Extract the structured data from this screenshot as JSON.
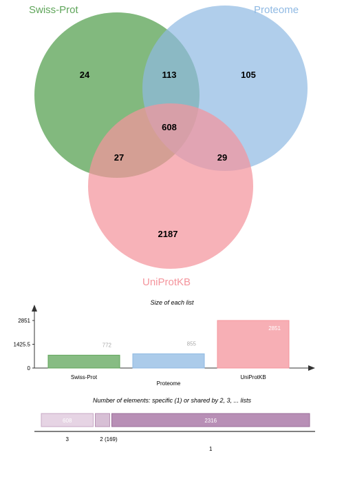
{
  "colors": {
    "swiss": "#5fa55a",
    "proteome": "#8fb9e3",
    "uniprot": "#f4949c",
    "bar3": "#e6d4e4",
    "bar2": "#d7bfd5",
    "bar1": "#b88fb6"
  },
  "venn": {
    "labels": {
      "swiss": "Swiss-Prot",
      "proteome": "Proteome",
      "uniprot": "UniProtKB"
    },
    "regions": {
      "swiss_only": "24",
      "swiss_proteome": "113",
      "proteome_only": "105",
      "all_three": "608",
      "swiss_uniprot": "27",
      "proteome_uniprot": "29",
      "uniprot_only": "2187"
    }
  },
  "chart_data": [
    {
      "type": "bar",
      "title": "Size of each list",
      "categories": [
        "Swiss-Prot",
        "Proteome",
        "UniProtKB"
      ],
      "values": [
        772,
        855,
        2851
      ],
      "value_labels": [
        "772",
        "855",
        "2851"
      ],
      "yticks": [
        0,
        1425.5,
        2851
      ],
      "ytick_labels": [
        "0",
        "1425.5",
        "2851"
      ],
      "ylim": [
        0,
        2851
      ]
    },
    {
      "type": "bar",
      "title": "Number of elements: specific (1) or shared by 2, 3, ... lists",
      "segments": [
        {
          "value": 608,
          "label": "608",
          "axis_label": "3"
        },
        {
          "value": 169,
          "label": "",
          "axis_label": "2 (169)"
        },
        {
          "value": 2316,
          "label": "2316",
          "axis_label": "1"
        }
      ]
    }
  ]
}
